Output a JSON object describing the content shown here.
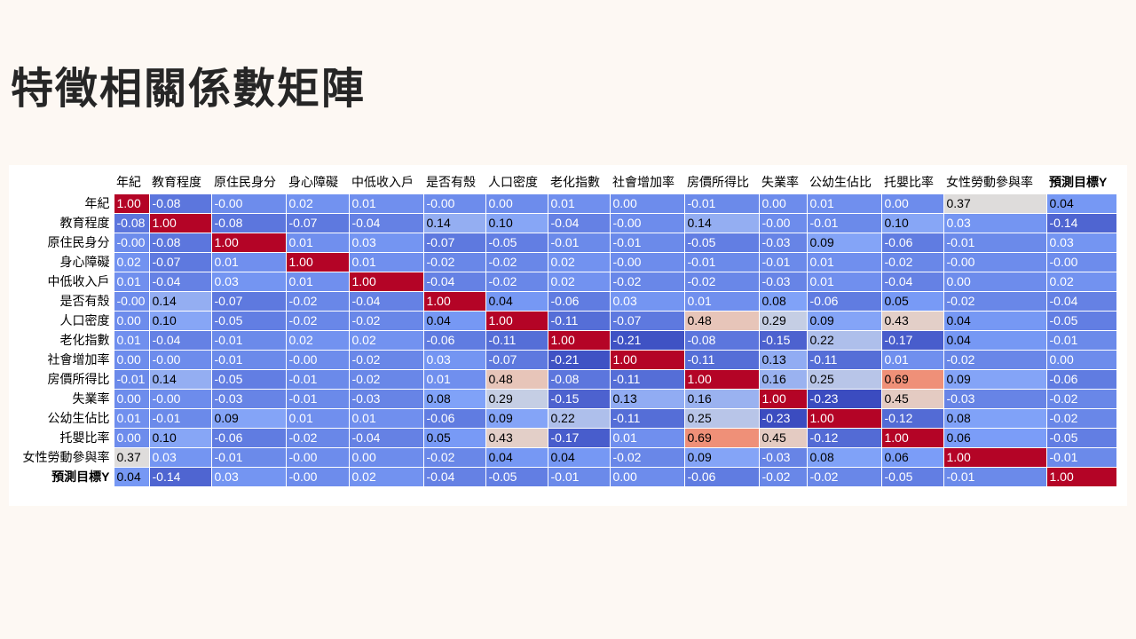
{
  "slide": {
    "title": "特徵相關係數矩陣"
  },
  "chart_data": {
    "type": "heatmap",
    "title": "",
    "xlabel": "",
    "ylabel": "",
    "value_range": [
      -1,
      1
    ],
    "colormap": "coolwarm",
    "cell_label_format": "0.00",
    "labels": [
      "年紀",
      "教育程度",
      "原住民身分",
      "身心障礙",
      "中低收入戶",
      "是否有殼",
      "人口密度",
      "老化指數",
      "社會增加率",
      "房價所得比",
      "失業率",
      "公幼生佔比",
      "托嬰比率",
      "女性勞動參與率",
      "預測目標Y"
    ],
    "matrix": [
      [
        1.0,
        -0.08,
        -0.0,
        0.02,
        0.01,
        -0.0,
        0.0,
        0.01,
        0.0,
        -0.01,
        0.0,
        0.01,
        0.0,
        0.37,
        0.04
      ],
      [
        -0.08,
        1.0,
        -0.08,
        -0.07,
        -0.04,
        0.14,
        0.1,
        -0.04,
        -0.0,
        0.14,
        -0.0,
        -0.01,
        0.1,
        0.03,
        -0.14
      ],
      [
        -0.0,
        -0.08,
        1.0,
        0.01,
        0.03,
        -0.07,
        -0.05,
        -0.01,
        -0.01,
        -0.05,
        -0.03,
        0.09,
        -0.06,
        -0.01,
        0.03
      ],
      [
        0.02,
        -0.07,
        0.01,
        1.0,
        0.01,
        -0.02,
        -0.02,
        0.02,
        -0.0,
        -0.01,
        -0.01,
        0.01,
        -0.02,
        -0.0,
        -0.0
      ],
      [
        0.01,
        -0.04,
        0.03,
        0.01,
        1.0,
        -0.04,
        -0.02,
        0.02,
        -0.02,
        -0.02,
        -0.03,
        0.01,
        -0.04,
        0.0,
        0.02
      ],
      [
        -0.0,
        0.14,
        -0.07,
        -0.02,
        -0.04,
        1.0,
        0.04,
        -0.06,
        0.03,
        0.01,
        0.08,
        -0.06,
        0.05,
        -0.02,
        -0.04
      ],
      [
        0.0,
        0.1,
        -0.05,
        -0.02,
        -0.02,
        0.04,
        1.0,
        -0.11,
        -0.07,
        0.48,
        0.29,
        0.09,
        0.43,
        0.04,
        -0.05
      ],
      [
        0.01,
        -0.04,
        -0.01,
        0.02,
        0.02,
        -0.06,
        -0.11,
        1.0,
        -0.21,
        -0.08,
        -0.15,
        0.22,
        -0.17,
        0.04,
        -0.01
      ],
      [
        0.0,
        -0.0,
        -0.01,
        -0.0,
        -0.02,
        0.03,
        -0.07,
        -0.21,
        1.0,
        -0.11,
        0.13,
        -0.11,
        0.01,
        -0.02,
        0.0
      ],
      [
        -0.01,
        0.14,
        -0.05,
        -0.01,
        -0.02,
        0.01,
        0.48,
        -0.08,
        -0.11,
        1.0,
        0.16,
        0.25,
        0.69,
        0.09,
        -0.06
      ],
      [
        0.0,
        -0.0,
        -0.03,
        -0.01,
        -0.03,
        0.08,
        0.29,
        -0.15,
        0.13,
        0.16,
        1.0,
        -0.23,
        0.45,
        -0.03,
        -0.02
      ],
      [
        0.01,
        -0.01,
        0.09,
        0.01,
        0.01,
        -0.06,
        0.09,
        0.22,
        -0.11,
        0.25,
        -0.23,
        1.0,
        -0.12,
        0.08,
        -0.02
      ],
      [
        0.0,
        0.1,
        -0.06,
        -0.02,
        -0.04,
        0.05,
        0.43,
        -0.17,
        0.01,
        0.69,
        0.45,
        -0.12,
        1.0,
        0.06,
        -0.05
      ],
      [
        0.37,
        0.03,
        -0.01,
        -0.0,
        0.0,
        -0.02,
        0.04,
        0.04,
        -0.02,
        0.09,
        -0.03,
        0.08,
        0.06,
        1.0,
        -0.01
      ],
      [
        0.04,
        -0.14,
        0.03,
        -0.0,
        0.02,
        -0.04,
        -0.05,
        -0.01,
        0.0,
        -0.06,
        -0.02,
        -0.02,
        -0.05,
        -0.01,
        1.0
      ]
    ]
  }
}
